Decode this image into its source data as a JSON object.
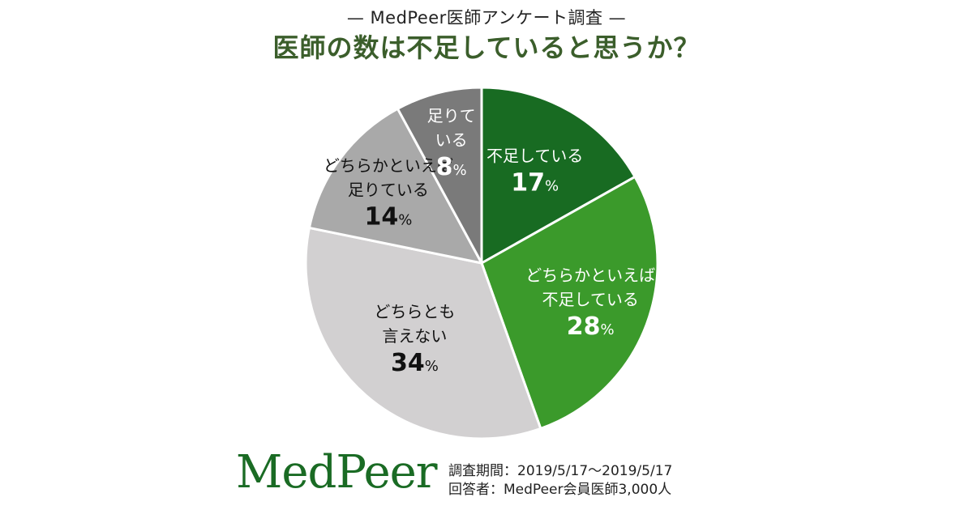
{
  "header": {
    "subtitle": "— MedPeer医師アンケート調査 —",
    "title": "医師の数は不足していると思うか？"
  },
  "chart_data": {
    "type": "pie",
    "start": "12 o'clock",
    "direction": "clockwise",
    "slices": [
      {
        "label": [
          "不足している"
        ],
        "value": 17,
        "unit": "%",
        "color": "#186b22",
        "text_color": "#ffffff"
      },
      {
        "label": [
          "どちらかといえば",
          "不足している"
        ],
        "value": 28,
        "unit": "%",
        "color": "#3b9a2b",
        "text_color": "#ffffff"
      },
      {
        "label": [
          "どちらとも",
          "言えない"
        ],
        "value": 34,
        "unit": "%",
        "color": "#d2d0d1",
        "text_color": "#111111"
      },
      {
        "label": [
          "どちらかといえば",
          "足りている"
        ],
        "value": 14,
        "unit": "%",
        "color": "#a9a9a9",
        "text_color": "#111111"
      },
      {
        "label": [
          "足りて",
          "いる"
        ],
        "value": 8,
        "unit": "%",
        "color": "#7a7a7a",
        "text_color": "#ffffff"
      }
    ]
  },
  "footer": {
    "logo": "MedPeer",
    "period": "調査期間：2019/5/17～2019/5/17",
    "respondents": "回答者：MedPeer会員医師3,000人"
  },
  "colors": {
    "title": "#3b5e2b",
    "logo": "#1a6b24"
  }
}
